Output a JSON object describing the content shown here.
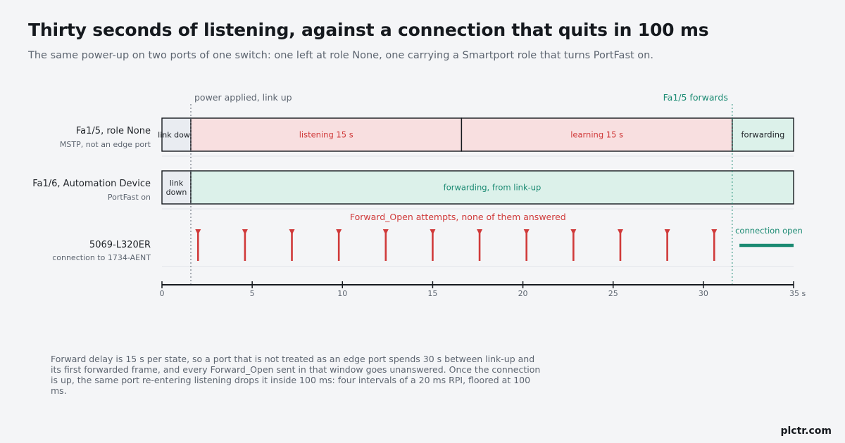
{
  "header": {
    "title": "Thirty seconds of listening, against a connection that quits in 100 ms",
    "subtitle": "The same power-up on two ports of one switch: one left at role None, one carrying a Smartport role that turns PortFast on."
  },
  "chart_data": {
    "type": "timeline",
    "xlim": [
      0,
      35
    ],
    "ticks": [
      0,
      5,
      10,
      15,
      20,
      25,
      30,
      35
    ],
    "tick_labels": [
      "0",
      "5",
      "10",
      "15",
      "20",
      "25",
      "30",
      "35 s"
    ],
    "markers": [
      {
        "x": 1.6,
        "label": "power applied, link up",
        "color": "#5d6570"
      },
      {
        "x": 31.6,
        "label": "Fa1/5 forwards",
        "color": "#1a8a72"
      }
    ],
    "rows": [
      {
        "label": "Fa1/5, role None",
        "sublabel": "MSTP, not an edge port",
        "segments": [
          {
            "start": 0,
            "end": 1.6,
            "label": "link down",
            "state": "down"
          },
          {
            "start": 1.6,
            "end": 16.6,
            "label": "listening  15 s",
            "state": "listening"
          },
          {
            "start": 16.6,
            "end": 31.6,
            "label": "learning  15 s",
            "state": "learning"
          },
          {
            "start": 31.6,
            "end": 35,
            "label": "forwarding",
            "state": "forwarding-dark"
          }
        ]
      },
      {
        "label": "Fa1/6, Automation Device",
        "sublabel": "PortFast on",
        "segments": [
          {
            "start": 0,
            "end": 1.6,
            "label": "link\ndown",
            "state": "down"
          },
          {
            "start": 1.6,
            "end": 35,
            "label": "forwarding, from link-up",
            "state": "forwarding"
          }
        ]
      }
    ],
    "events": {
      "label": "5069-L320ER",
      "sublabel": "connection to 1734-AENT",
      "caption": "Forward_Open attempts, none of them answered",
      "attempts": [
        2.0,
        4.6,
        7.2,
        9.8,
        12.4,
        15.0,
        17.6,
        20.2,
        22.8,
        25.4,
        28.0,
        30.6
      ],
      "connection": {
        "start": 32.0,
        "end": 35,
        "label": "connection open"
      }
    },
    "colors": {
      "down": "#e9ecf1",
      "listening": "#f8dfe0",
      "learning": "#f8dfe0",
      "forwarding": "#dcf1ea",
      "border": "#15191e",
      "red": "#d03a3a",
      "teal": "#1a8a72",
      "grey_text": "#5d6570"
    }
  },
  "footnote": "Forward delay is 15 s per state, so a port that is not treated as an edge port spends 30 s between link-up and its first forwarded frame, and every Forward_Open sent in that window goes unanswered. Once the connection is up, the same port re-entering listening drops it inside 100 ms: four intervals of a 20 ms RPI, floored at 100 ms.",
  "brand": "plctr.com"
}
